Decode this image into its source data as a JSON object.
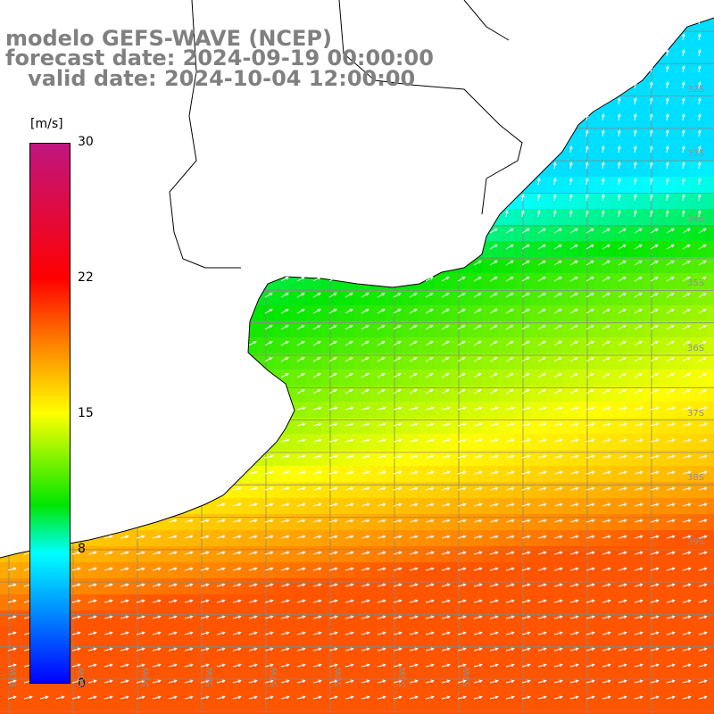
{
  "title": {
    "line1": "modelo GEFS-WAVE (NCEP)",
    "line2": "forecast date: 2024-09-19 00:00:00",
    "line3": "   valid date: 2024-10-04 12:00:00"
  },
  "colorbar": {
    "units": "[m/s]",
    "ticks": [
      "30",
      "22",
      "15",
      "8",
      "0"
    ],
    "colors": [
      "#c0157f",
      "#ff0000",
      "#ff8000",
      "#ffff00",
      "#00e600",
      "#00ffff",
      "#0000ff"
    ]
  },
  "lat_labels": [
    "32S",
    "33S",
    "34S",
    "35S",
    "36S",
    "37S",
    "38S",
    "39S"
  ],
  "lon_labels": [
    "61W",
    "60W",
    "59W",
    "58W",
    "57W",
    "56W",
    "55W",
    "54W"
  ],
  "wind_field": {
    "description_values": {
      "north_coast_min_ms": 7,
      "center_ms": 12,
      "southeast_max_ms": 20
    }
  }
}
